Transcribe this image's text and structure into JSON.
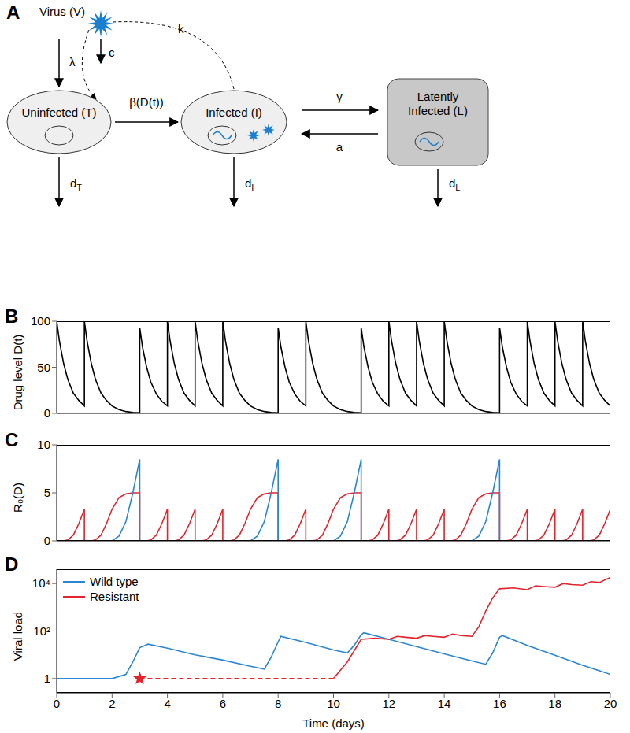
{
  "diagram": {
    "panel": "A",
    "virus": "Virus (V)",
    "rates": {
      "production": "λ",
      "clearance": "c",
      "viral_production": "k",
      "infection": "β(D(t))",
      "latency": "γ",
      "activation": "a"
    },
    "nodes": [
      {
        "label": [
          "Uninfected (T)"
        ],
        "death": "d",
        "death_sub": "T"
      },
      {
        "label": [
          "Infected (I)"
        ],
        "death": "d",
        "death_sub": "I"
      },
      {
        "label": [
          "Latently",
          "Infected (L)"
        ],
        "death": "d",
        "death_sub": "L"
      }
    ]
  },
  "chart_data": [
    {
      "panel": "B",
      "type": "line",
      "y_label": "Drug level D(t)",
      "color": "#000000",
      "xlim": [
        0,
        20
      ],
      "ylim": [
        0,
        100
      ],
      "yticks": [
        0,
        50,
        100
      ],
      "tick_labels": "y",
      "x": [
        0,
        0.1,
        0.25,
        0.4,
        0.6,
        0.8,
        1,
        1,
        1.1,
        1.25,
        1.4,
        1.6,
        1.8,
        2,
        2.25,
        2.5,
        2.75,
        3,
        3,
        3.1,
        3.25,
        3.4,
        3.6,
        3.8,
        4,
        4,
        4.1,
        4.25,
        4.4,
        4.6,
        4.8,
        5,
        5,
        5.1,
        5.25,
        5.4,
        5.6,
        5.8,
        6,
        6,
        6.1,
        6.25,
        6.4,
        6.6,
        6.8,
        7,
        7.25,
        7.5,
        7.75,
        8,
        8,
        8.1,
        8.25,
        8.4,
        8.6,
        8.8,
        9,
        9,
        9.1,
        9.25,
        9.4,
        9.6,
        9.8,
        10,
        10.25,
        10.5,
        10.75,
        11,
        11,
        11.1,
        11.25,
        11.4,
        11.6,
        11.8,
        12,
        12,
        12.1,
        12.25,
        12.4,
        12.6,
        12.8,
        13,
        13,
        13.1,
        13.25,
        13.4,
        13.6,
        13.8,
        14,
        14,
        14.1,
        14.25,
        14.4,
        14.6,
        14.8,
        15,
        15.25,
        15.5,
        15.75,
        16,
        16,
        16.1,
        16.25,
        16.4,
        16.6,
        16.8,
        17,
        17,
        17.1,
        17.25,
        17.4,
        17.6,
        17.8,
        18,
        18,
        18.1,
        18.25,
        18.4,
        18.6,
        18.8,
        19,
        19,
        19.1,
        19.25,
        19.4,
        19.6,
        19.8,
        20,
        20
      ],
      "values": [
        100,
        78,
        54,
        37,
        22,
        14,
        8,
        100,
        78,
        54,
        37,
        22,
        14,
        8,
        4,
        2,
        1,
        0.5,
        93,
        72,
        50,
        34,
        21,
        13,
        8,
        100,
        78,
        54,
        37,
        22,
        14,
        8,
        100,
        78,
        54,
        37,
        22,
        14,
        8,
        100,
        78,
        54,
        37,
        22,
        14,
        8,
        4,
        2,
        1,
        0.5,
        93,
        72,
        50,
        34,
        21,
        13,
        8,
        100,
        78,
        54,
        37,
        22,
        14,
        8,
        4,
        2,
        1,
        0.5,
        93,
        72,
        50,
        34,
        21,
        13,
        8,
        100,
        78,
        54,
        37,
        22,
        14,
        8,
        100,
        78,
        54,
        37,
        22,
        14,
        8,
        100,
        78,
        54,
        37,
        22,
        14,
        8,
        4,
        2,
        1,
        0.5,
        93,
        72,
        50,
        34,
        21,
        13,
        8,
        100,
        78,
        54,
        37,
        22,
        14,
        8,
        100,
        78,
        54,
        37,
        22,
        14,
        8,
        100,
        78,
        54,
        37,
        22,
        14,
        8,
        100
      ]
    },
    {
      "panel": "C",
      "type": "line",
      "y_label": "R₀(D)",
      "xlim": [
        0,
        20
      ],
      "ylim": [
        0,
        10
      ],
      "yticks": [
        0,
        5,
        10
      ],
      "tick_labels": "y",
      "x": [
        0,
        0.1,
        0.25,
        0.4,
        0.6,
        0.8,
        1,
        1,
        1.1,
        1.25,
        1.4,
        1.6,
        1.8,
        2,
        2.25,
        2.5,
        2.75,
        3,
        3,
        3.1,
        3.25,
        3.4,
        3.6,
        3.8,
        4,
        4,
        4.1,
        4.25,
        4.4,
        4.6,
        4.8,
        5,
        5,
        5.1,
        5.25,
        5.4,
        5.6,
        5.8,
        6,
        6,
        6.1,
        6.25,
        6.4,
        6.6,
        6.8,
        7,
        7.25,
        7.5,
        7.75,
        8,
        8,
        8.1,
        8.25,
        8.4,
        8.6,
        8.8,
        9,
        9,
        9.1,
        9.25,
        9.4,
        9.6,
        9.8,
        10,
        10.25,
        10.5,
        10.75,
        11,
        11,
        11.1,
        11.25,
        11.4,
        11.6,
        11.8,
        12,
        12,
        12.1,
        12.25,
        12.4,
        12.6,
        12.8,
        13,
        13,
        13.1,
        13.25,
        13.4,
        13.6,
        13.8,
        14,
        14,
        14.1,
        14.25,
        14.4,
        14.6,
        14.8,
        15,
        15.25,
        15.5,
        15.75,
        16,
        16,
        16.1,
        16.25,
        16.4,
        16.6,
        16.8,
        17,
        17,
        17.1,
        17.25,
        17.4,
        17.6,
        17.8,
        18,
        18,
        18.1,
        18.25,
        18.4,
        18.6,
        18.8,
        19,
        19,
        19.1,
        19.25,
        19.4,
        19.6,
        19.8,
        20,
        20
      ],
      "series": [
        {
          "color": "#e3242b",
          "values": [
            0,
            0,
            0,
            0.1,
            0.6,
            1.8,
            3.3,
            0,
            0,
            0,
            0.1,
            0.6,
            1.8,
            3.3,
            4.5,
            4.9,
            5,
            5,
            0,
            0,
            0,
            0.1,
            0.6,
            1.8,
            3.3,
            0,
            0,
            0,
            0.1,
            0.6,
            1.8,
            3.3,
            0,
            0,
            0,
            0.1,
            0.6,
            1.8,
            3.3,
            0,
            0,
            0,
            0.1,
            0.6,
            1.8,
            3.3,
            4.5,
            4.9,
            5,
            5,
            0,
            0,
            0,
            0.1,
            0.6,
            1.8,
            3.3,
            0,
            0,
            0,
            0.1,
            0.6,
            1.8,
            3.3,
            4.5,
            4.9,
            5,
            5,
            0,
            0,
            0,
            0.1,
            0.6,
            1.8,
            3.3,
            0,
            0,
            0,
            0.1,
            0.6,
            1.8,
            3.3,
            0,
            0,
            0,
            0.1,
            0.6,
            1.8,
            3.3,
            0,
            0,
            0,
            0.1,
            0.6,
            1.8,
            3.3,
            4.5,
            4.9,
            5,
            5,
            0,
            0,
            0,
            0.1,
            0.6,
            1.8,
            3.3,
            0,
            0,
            0,
            0.1,
            0.6,
            1.8,
            3.3,
            0,
            0,
            0,
            0.1,
            0.6,
            1.8,
            3.3,
            0,
            0,
            0,
            0.1,
            0.6,
            1.8,
            3.3,
            0
          ]
        },
        {
          "color": "#2b86d1",
          "values": [
            0,
            0,
            0,
            0,
            0,
            0,
            0,
            0,
            0,
            0,
            0,
            0,
            0,
            0,
            0.5,
            2,
            5,
            8.5,
            0,
            0,
            0,
            0,
            0,
            0,
            0,
            0,
            0,
            0,
            0,
            0,
            0,
            0,
            0,
            0,
            0,
            0,
            0,
            0,
            0,
            0,
            0,
            0,
            0,
            0,
            0,
            0,
            0.5,
            2,
            5,
            8.5,
            0,
            0,
            0,
            0,
            0,
            0,
            0,
            0,
            0,
            0,
            0,
            0,
            0,
            0,
            0.5,
            2,
            5,
            8.5,
            0,
            0,
            0,
            0,
            0,
            0,
            0,
            0,
            0,
            0,
            0,
            0,
            0,
            0,
            0,
            0,
            0,
            0,
            0,
            0,
            0,
            0,
            0,
            0,
            0,
            0,
            0,
            0,
            0.5,
            2,
            5,
            8.5,
            0,
            0,
            0,
            0,
            0,
            0,
            0,
            0,
            0,
            0,
            0,
            0,
            0,
            0,
            0,
            0,
            0,
            0,
            0,
            0,
            0,
            0,
            0,
            0,
            0,
            0,
            0,
            0,
            0
          ]
        }
      ]
    },
    {
      "panel": "D",
      "type": "line",
      "x_label": "Time (days)",
      "y_label": "Viral load",
      "log": "y",
      "legend": "upper left",
      "xlim": [
        0,
        20
      ],
      "xticks": [
        0,
        2,
        4,
        6,
        8,
        10,
        12,
        14,
        16,
        18,
        20
      ],
      "ylim": [
        0.25,
        40000
      ],
      "yticks": [
        1,
        {
          "value": 100,
          "label": "10²"
        },
        {
          "value": 10000,
          "label": "10⁴"
        }
      ],
      "series": [
        {
          "name": "Wild type",
          "color": "#2b86d1",
          "x": [
            0,
            2,
            2.5,
            2.75,
            3,
            3.3,
            4,
            5,
            6,
            7,
            7.5,
            7.75,
            8,
            8.1,
            9,
            10,
            10.5,
            10.75,
            11,
            11.1,
            12,
            13,
            14,
            15,
            15.5,
            15.75,
            16,
            16.1,
            17,
            18,
            19,
            20
          ],
          "values": [
            1,
            1,
            1.5,
            5,
            20,
            28,
            19,
            10,
            6,
            3.3,
            2.5,
            8,
            35,
            60,
            33,
            16,
            12,
            25,
            70,
            85,
            45,
            22,
            11,
            5.5,
            4,
            12,
            55,
            65,
            25,
            9.5,
            3.6,
            1.5
          ]
        },
        {
          "name": "Resistant",
          "color": "#e3242b",
          "x": [
            10,
            10.5,
            11,
            11.5,
            12,
            12.3,
            12.6,
            13,
            13.3,
            13.6,
            14,
            14.3,
            14.6,
            15,
            15.25,
            15.5,
            15.75,
            16,
            16.5,
            17,
            17.3,
            17.6,
            18,
            18.3,
            18.6,
            19,
            19.3,
            19.6,
            20
          ],
          "values": [
            1,
            5,
            45,
            50,
            45,
            60,
            55,
            50,
            65,
            60,
            55,
            75,
            65,
            60,
            150,
            700,
            2500,
            6000,
            6500,
            5500,
            8000,
            7500,
            7000,
            10000,
            9000,
            8500,
            12000,
            11000,
            18000
          ]
        },
        {
          "color": "#e3242b",
          "line_style": "dashed",
          "x": [
            3,
            10
          ],
          "values": [
            1,
            1
          ]
        },
        {
          "type": "scatter",
          "marker": "star",
          "color": "#e3242b",
          "x": [
            3
          ],
          "values": [
            1
          ]
        }
      ]
    }
  ]
}
